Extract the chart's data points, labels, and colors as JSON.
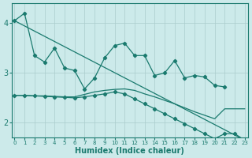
{
  "xlabel": "Humidex (Indice chaleur)",
  "bg_color": "#cceaea",
  "line_color": "#1a7a6e",
  "grid_color": "#aacccc",
  "ylim": [
    1.7,
    4.4
  ],
  "xlim": [
    -0.3,
    23.3
  ],
  "yticks": [
    2,
    3,
    4
  ],
  "xticks": [
    0,
    1,
    2,
    3,
    4,
    5,
    6,
    7,
    8,
    9,
    10,
    11,
    12,
    13,
    14,
    15,
    16,
    17,
    18,
    19,
    20,
    21,
    22,
    23
  ],
  "straight_line_x": [
    0,
    23
  ],
  "straight_line_y": [
    4.05,
    1.65
  ],
  "zigzag_x": [
    0,
    1,
    2,
    3,
    4,
    5,
    6,
    7,
    8,
    9,
    10,
    11,
    12,
    13,
    14,
    15,
    16,
    17,
    18,
    19,
    20,
    21
  ],
  "zigzag_y": [
    4.05,
    4.2,
    3.35,
    3.22,
    3.5,
    3.1,
    3.05,
    2.68,
    2.9,
    3.3,
    3.55,
    3.6,
    3.35,
    3.35,
    2.95,
    3.0,
    3.25,
    2.9,
    2.95,
    2.92,
    2.75,
    2.72
  ],
  "lower1_x": [
    0,
    1,
    2,
    3,
    4,
    5,
    6,
    7,
    8,
    9,
    10,
    11,
    12,
    13,
    14,
    15,
    16,
    17,
    18,
    19,
    20,
    21,
    22,
    23
  ],
  "lower1_y": [
    2.55,
    2.55,
    2.54,
    2.54,
    2.53,
    2.52,
    2.52,
    2.57,
    2.62,
    2.65,
    2.67,
    2.68,
    2.65,
    2.58,
    2.52,
    2.45,
    2.38,
    2.3,
    2.22,
    2.15,
    2.08,
    2.28,
    2.28,
    2.28
  ],
  "lower2_x": [
    0,
    1,
    2,
    3,
    4,
    5,
    6,
    7,
    8,
    9,
    10,
    11,
    12,
    13,
    14,
    15,
    16,
    17,
    18,
    19,
    20,
    21,
    22,
    23
  ],
  "lower2_y": [
    2.55,
    2.55,
    2.54,
    2.53,
    2.52,
    2.51,
    2.5,
    2.52,
    2.55,
    2.58,
    2.62,
    2.58,
    2.48,
    2.38,
    2.28,
    2.18,
    2.08,
    1.98,
    1.88,
    1.78,
    1.68,
    1.78,
    1.78,
    1.65
  ]
}
